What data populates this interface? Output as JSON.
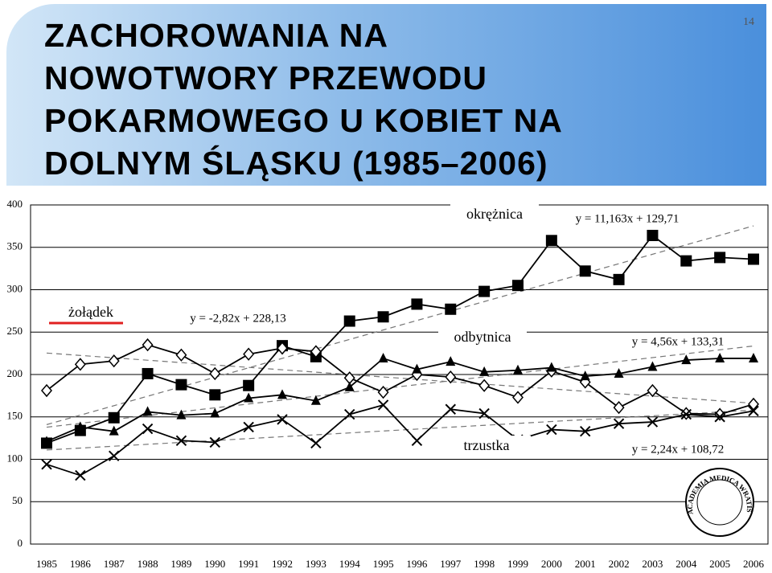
{
  "header": {
    "title_lines": [
      "ZACHOROWANIA NA",
      "NOWOTWORY PRZEWODU",
      "POKARMOWEGO U KOBIET NA",
      "DOLNYM ŚLĄSKU (1985–2006)"
    ],
    "page_number": "14"
  },
  "logo_text": "ACADEMIA MEDICA WRATISLAVIENSIS",
  "chart_data": {
    "type": "line",
    "categories": [
      "1985",
      "1986",
      "1987",
      "1988",
      "1989",
      "1990",
      "1991",
      "1992",
      "1993",
      "1994",
      "1995",
      "1996",
      "1997",
      "1998",
      "1999",
      "2000",
      "2001",
      "2002",
      "2003",
      "2004",
      "2005",
      "2006"
    ],
    "ylim": [
      0,
      400
    ],
    "yticks": [
      0,
      50,
      100,
      150,
      200,
      250,
      300,
      350,
      400
    ],
    "grid": true,
    "series": [
      {
        "name": "okrężnica",
        "color": "#000000",
        "marker": "square",
        "values": [
          119,
          134,
          149,
          201,
          188,
          176,
          187,
          234,
          221,
          263,
          268,
          283,
          277,
          298,
          305,
          358,
          322,
          312,
          364,
          334,
          338,
          336
        ],
        "trend": {
          "equation": "y = 11,163x + 129,71",
          "slope": 11.163,
          "intercept": 129.71
        }
      },
      {
        "name": "żołądek",
        "color": "#000000",
        "marker": "diamond",
        "underline": "#e02020",
        "values": [
          181,
          212,
          216,
          235,
          223,
          201,
          224,
          231,
          227,
          196,
          179,
          200,
          197,
          187,
          173,
          204,
          191,
          161,
          181,
          154,
          153,
          165
        ],
        "trend": {
          "equation": "y = -2,82x + 228,13",
          "slope": -2.82,
          "intercept": 228.13
        }
      },
      {
        "name": "odbytnica",
        "color": "#000000",
        "marker": "triangle",
        "values": [
          121,
          138,
          133,
          156,
          152,
          154,
          172,
          176,
          169,
          185,
          219,
          206,
          215,
          203,
          205,
          208,
          198,
          201,
          209,
          217,
          219,
          219
        ],
        "trend": {
          "equation": "y = 4,56x + 133,31",
          "slope": 4.56,
          "intercept": 133.31
        }
      },
      {
        "name": "trzustka",
        "color": "#000000",
        "marker": "x",
        "values": [
          94,
          81,
          104,
          136,
          122,
          120,
          138,
          147,
          119,
          153,
          164,
          122,
          159,
          154,
          123,
          135,
          133,
          142,
          144,
          153,
          150,
          157
        ],
        "trend": {
          "equation": "y = 2,24x + 108,72",
          "slope": 2.24,
          "intercept": 108.72
        }
      }
    ]
  }
}
